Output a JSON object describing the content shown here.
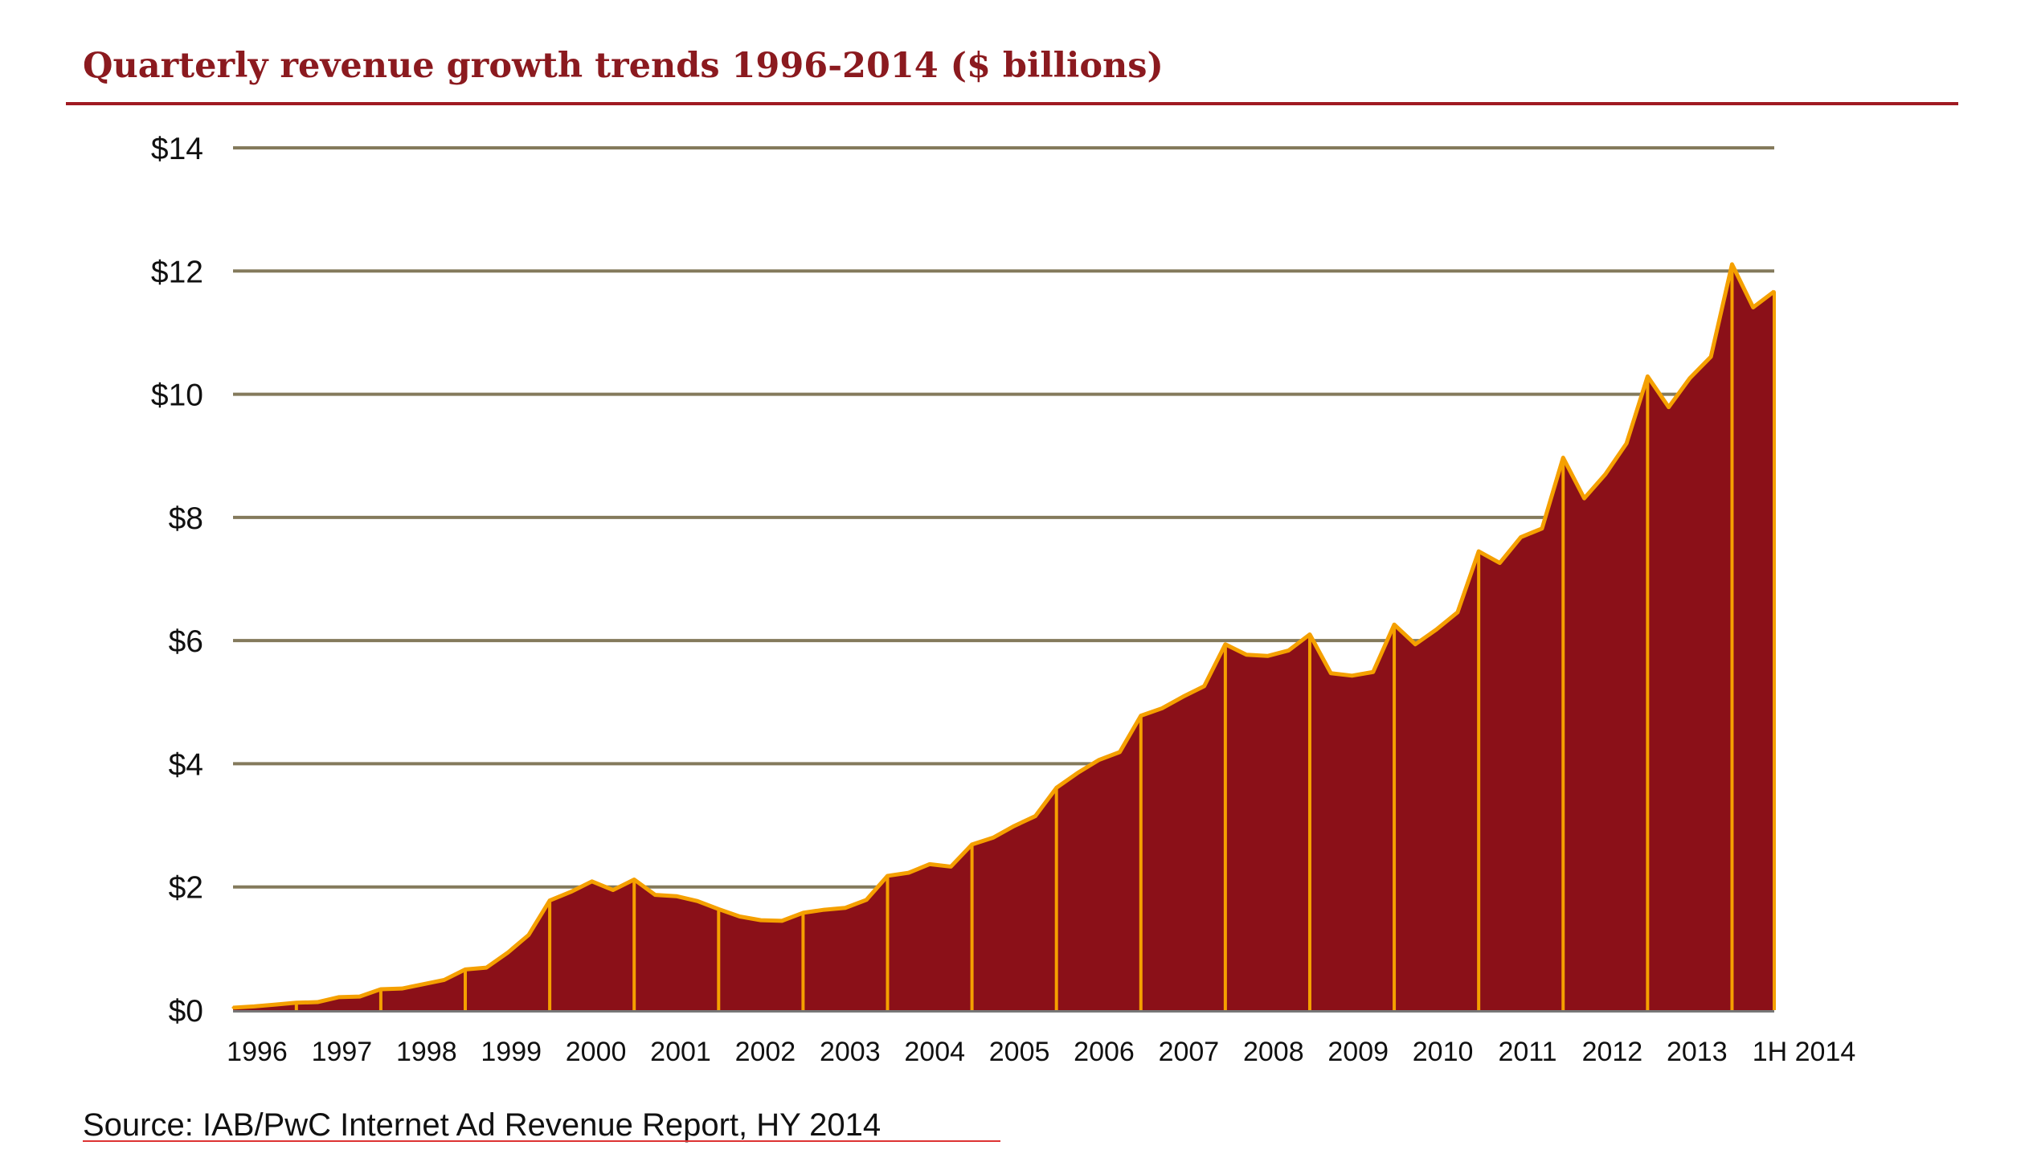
{
  "chart_data": {
    "type": "area",
    "title": "Quarterly revenue growth trends 1996-2014 ($ billions)",
    "xlabel": "",
    "ylabel": "",
    "ylim": [
      0,
      14
    ],
    "yticks": [
      0,
      2,
      4,
      6,
      8,
      10,
      12,
      14
    ],
    "ytick_labels": [
      "$0",
      "$2",
      "$4",
      "$6",
      "$8",
      "$10",
      "$12",
      "$14"
    ],
    "grid": true,
    "x_tick_labels": [
      "1996",
      "1997",
      "1998",
      "1999",
      "2000",
      "2001",
      "2002",
      "2003",
      "2004",
      "2005",
      "2006",
      "2007",
      "2008",
      "2009",
      "2010",
      "2011",
      "2012",
      "2013",
      "1H 2014"
    ],
    "x_granularity": "quarterly",
    "values": [
      0.04,
      0.06,
      0.09,
      0.12,
      0.13,
      0.21,
      0.22,
      0.34,
      0.35,
      0.42,
      0.49,
      0.66,
      0.69,
      0.93,
      1.22,
      1.78,
      1.92,
      2.09,
      1.95,
      2.12,
      1.87,
      1.85,
      1.77,
      1.64,
      1.52,
      1.46,
      1.45,
      1.58,
      1.63,
      1.66,
      1.79,
      2.18,
      2.23,
      2.37,
      2.33,
      2.69,
      2.8,
      2.99,
      3.15,
      3.61,
      3.85,
      4.06,
      4.19,
      4.78,
      4.9,
      5.09,
      5.26,
      5.94,
      5.77,
      5.75,
      5.84,
      6.1,
      5.47,
      5.43,
      5.49,
      6.26,
      5.94,
      6.18,
      6.46,
      7.45,
      7.26,
      7.68,
      7.82,
      8.97,
      8.31,
      8.7,
      9.2,
      10.29,
      9.79,
      10.26,
      10.61,
      12.11,
      11.41,
      11.67
    ],
    "colors": {
      "fill": "#8B1018",
      "line": "#F5A000",
      "grid": "#847A5C",
      "title": "#8B1A1F",
      "rule": "#A01A22"
    }
  },
  "source": "Source: IAB/PwC Internet Ad Revenue Report, HY 2014"
}
